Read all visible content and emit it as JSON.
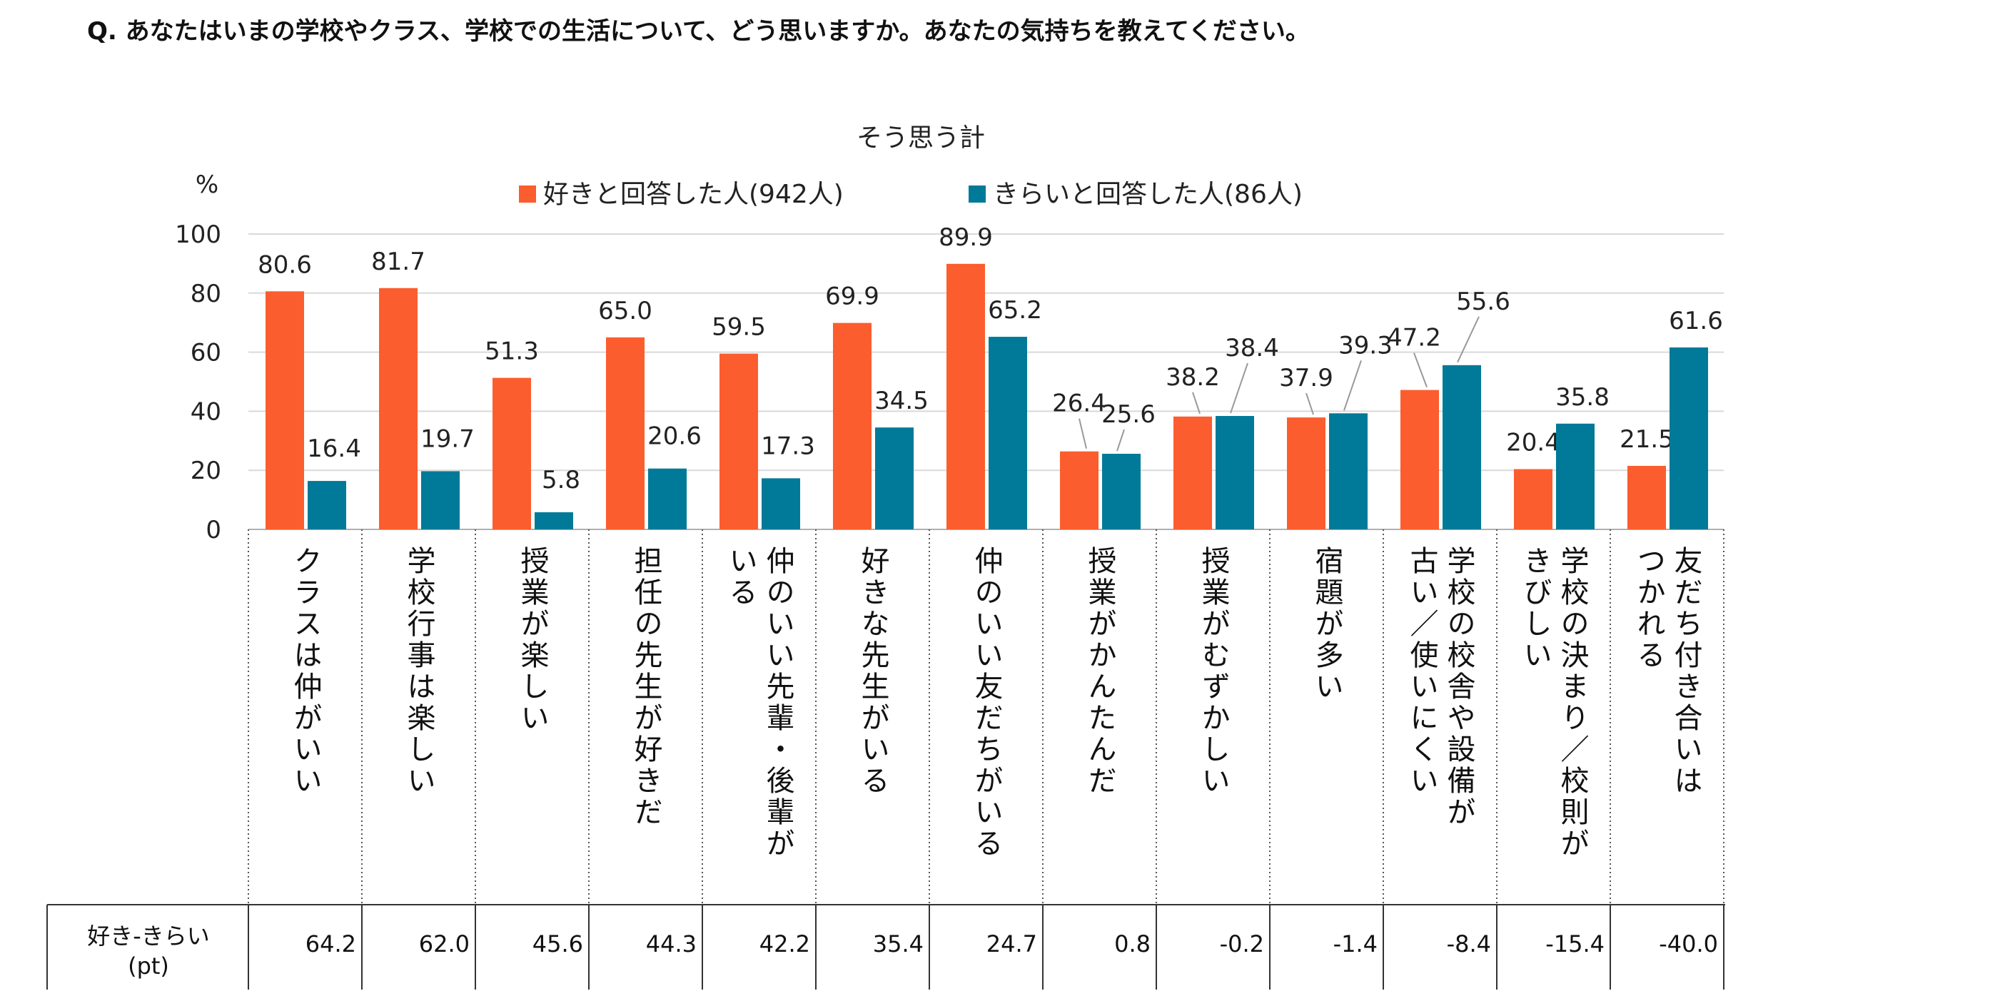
{
  "question": "Q. あなたはいまの学校やクラス、学校での生活について、どう思いますか。あなたの気持ちを教えてください。",
  "chart_data": {
    "type": "bar",
    "title": "そう思う計",
    "ylabel": "%",
    "ylim": [
      0,
      100
    ],
    "yticks": [
      0,
      20,
      40,
      60,
      80,
      100
    ],
    "grid": true,
    "legend": "top",
    "categories": [
      [
        "クラスは仲がいい"
      ],
      [
        "学校行事は楽しい"
      ],
      [
        "授業が楽しい"
      ],
      [
        "担任の先生が好きだ"
      ],
      [
        "仲のいい先輩・後輩が",
        "いる"
      ],
      [
        "好きな先生がいる"
      ],
      [
        "仲のいい友だちがいる"
      ],
      [
        "授業がかんたんだ"
      ],
      [
        "授業がむずかしい"
      ],
      [
        "宿題が多い"
      ],
      [
        "学校の校舎や設備が",
        "古い／使いにくい"
      ],
      [
        "学校の決まり／校則が",
        "きびしい"
      ],
      [
        "友だち付き合いは",
        "つかれる"
      ]
    ],
    "series": [
      {
        "name": "好きと回答した人(942人)",
        "color": "#fc5d2e",
        "values": [
          80.6,
          81.7,
          51.3,
          65.0,
          59.5,
          69.9,
          89.9,
          26.4,
          38.2,
          37.9,
          47.2,
          20.4,
          21.5
        ],
        "labels": [
          "80.6",
          "81.7",
          "51.3",
          "65.0",
          "59.5",
          "69.9",
          "89.9",
          "26.4",
          "38.2",
          "37.9",
          "47.2",
          "20.4",
          "21.5"
        ]
      },
      {
        "name": "きらいと回答した人(86人)",
        "color": "#007a98",
        "values": [
          16.4,
          19.7,
          5.8,
          20.6,
          17.3,
          34.5,
          65.2,
          25.6,
          38.4,
          39.3,
          55.6,
          35.8,
          61.6
        ],
        "labels": [
          "16.4",
          "19.7",
          "5.8",
          "20.6",
          "17.3",
          "34.5",
          "65.2",
          "25.6",
          "38.4",
          "39.3",
          "55.6",
          "35.8",
          "61.6"
        ]
      }
    ],
    "diff_row": {
      "label_line1": "好き-きらい",
      "label_line2": "(pt)",
      "values": [
        "64.2",
        "62.0",
        "45.6",
        "44.3",
        "42.2",
        "35.4",
        "24.7",
        "0.8",
        "-0.2",
        "-1.4",
        "-8.4",
        "-15.4",
        "-40.0"
      ]
    }
  }
}
